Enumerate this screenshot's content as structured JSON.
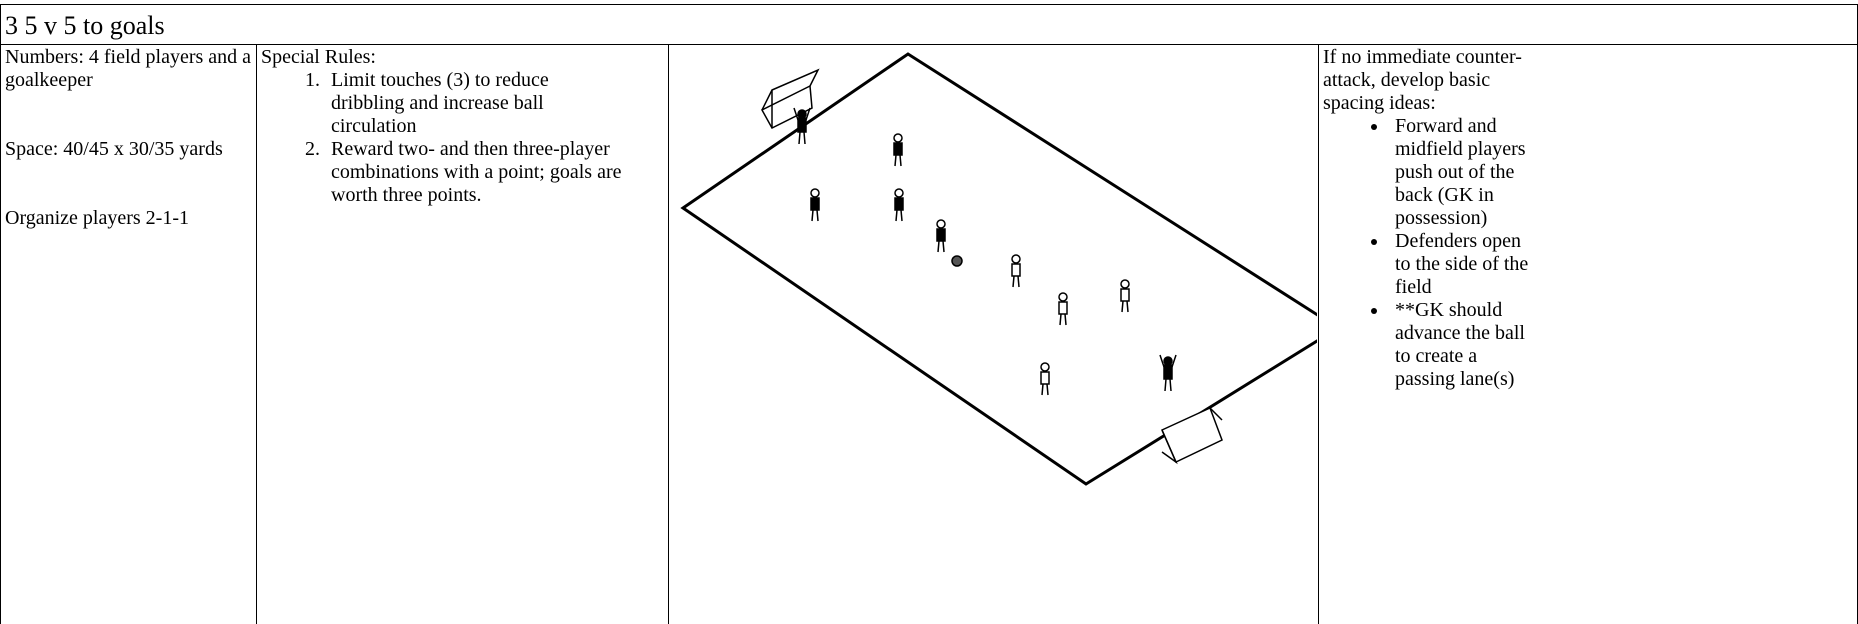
{
  "header": {
    "title": "3  5 v 5 to goals"
  },
  "columns": [
    {
      "paragraphs": [
        "Numbers: 4 field players and a goalkeeper",
        "Space: 40/45 x 30/35 yards",
        "Organize players 2-1-1"
      ]
    },
    {
      "heading": "Special Rules:",
      "items": [
        "Limit touches (3) to reduce dribbling and increase ball circulation",
        "Reward two- and then three-player combinations with a point; goals are worth three points."
      ]
    },
    {
      "intro": "If no immediate counter-attack, develop basic spacing ideas:",
      "items": [
        "Forward and midfield players push out of the back (GK in possession)",
        "Defenders open to the side of the field",
        "**GK should advance the ball to create a passing lane(s)"
      ]
    }
  ]
}
